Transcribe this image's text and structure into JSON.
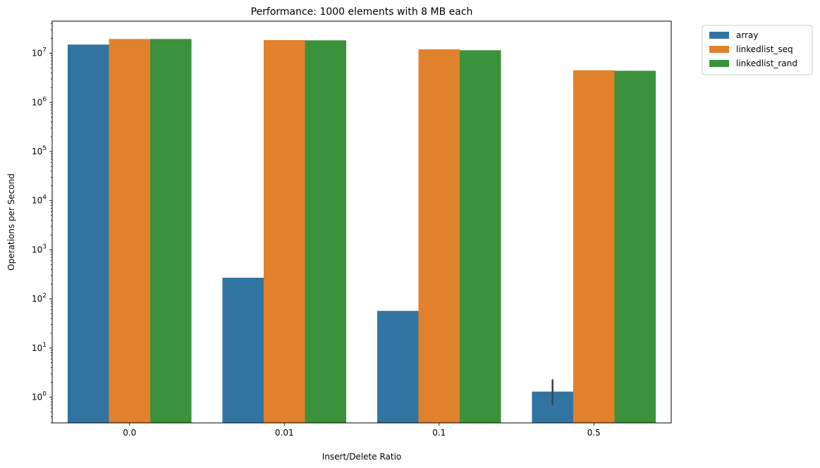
{
  "chart_data": {
    "type": "bar",
    "title": "Performance: 1000 elements with 8 MB each",
    "xlabel": "Insert/Delete Ratio",
    "ylabel": "Operations per Second",
    "yscale": "log",
    "ylim": [
      0.3,
      45000000
    ],
    "y_ticks": [
      1,
      10,
      100,
      1000,
      10000,
      100000,
      1000000,
      10000000
    ],
    "y_tick_labels": [
      {
        "base": "10",
        "exp": "0"
      },
      {
        "base": "10",
        "exp": "1"
      },
      {
        "base": "10",
        "exp": "2"
      },
      {
        "base": "10",
        "exp": "3"
      },
      {
        "base": "10",
        "exp": "4"
      },
      {
        "base": "10",
        "exp": "5"
      },
      {
        "base": "10",
        "exp": "6"
      },
      {
        "base": "10",
        "exp": "7"
      }
    ],
    "categories": [
      "0.0",
      "0.01",
      "0.1",
      "0.5"
    ],
    "series": [
      {
        "name": "array",
        "color": "#3274a1",
        "values": [
          15000000,
          270,
          57,
          1.3
        ]
      },
      {
        "name": "linkedlist_seq",
        "color": "#e1812c",
        "values": [
          19500000,
          18500000,
          12000000,
          4500000
        ]
      },
      {
        "name": "linkedlist_rand",
        "color": "#3a923a",
        "values": [
          19500000,
          18300000,
          11500000,
          4400000
        ]
      }
    ],
    "error_bars": [
      {
        "series": "array",
        "category": "0.5",
        "low": 0.7,
        "high": 2.3
      }
    ],
    "legend": {
      "placement": "outside top-right",
      "entries": [
        "array",
        "linkedlist_seq",
        "linkedlist_rand"
      ]
    },
    "grid": false
  }
}
